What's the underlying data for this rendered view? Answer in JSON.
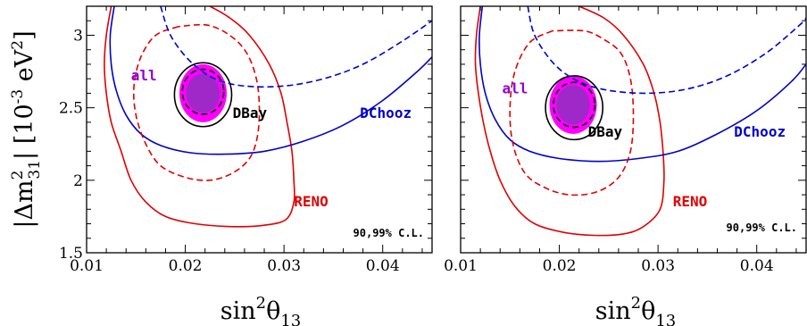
{
  "chart_data": [
    {
      "type": "contour",
      "panel": "left",
      "xlabel_base": "sin",
      "xlabel_sup": "2",
      "xlabel_theta": "θ",
      "xlabel_sub": "13",
      "ylabel_parts": [
        "|Δm",
        "2",
        "31",
        "| [10",
        "-3",
        " eV",
        "2",
        "]"
      ],
      "xlim": [
        0.01,
        0.045
      ],
      "ylim": [
        1.5,
        3.2
      ],
      "xticks": [
        0.01,
        0.02,
        0.03,
        0.04
      ],
      "xtick_labels": [
        "0.01",
        "0.02",
        "0.03",
        "0.04"
      ],
      "yticks": [
        1.5,
        2,
        2.5,
        3
      ],
      "ytick_labels": [
        "1.5",
        "2",
        "2.5",
        "3"
      ],
      "cl_text": "90,99% C.L.",
      "labels": [
        {
          "text": "all",
          "color": "#9400d3",
          "x": 0.0145,
          "y": 2.69
        },
        {
          "text": "DBay",
          "color": "#000000",
          "x": 0.0248,
          "y": 2.43
        },
        {
          "text": "DChooz",
          "color": "#0000cc",
          "x": 0.0377,
          "y": 2.43
        },
        {
          "text": "RENO",
          "color": "#e00000",
          "x": 0.031,
          "y": 1.82
        }
      ],
      "series": [
        {
          "name": "RENO",
          "cl": "99%",
          "style": "solid",
          "color": "#e00000",
          "points": [
            [
              0.0125,
              3.2
            ],
            [
              0.012,
              3.0
            ],
            [
              0.0118,
              2.8
            ],
            [
              0.012,
              2.6
            ],
            [
              0.0125,
              2.4
            ],
            [
              0.0135,
              2.2
            ],
            [
              0.0145,
              2.0
            ],
            [
              0.016,
              1.85
            ],
            [
              0.018,
              1.75
            ],
            [
              0.021,
              1.7
            ],
            [
              0.025,
              1.68
            ],
            [
              0.028,
              1.69
            ],
            [
              0.0302,
              1.73
            ],
            [
              0.031,
              1.85
            ],
            [
              0.031,
              2.0
            ],
            [
              0.0308,
              2.2
            ],
            [
              0.0303,
              2.4
            ],
            [
              0.0297,
              2.6
            ],
            [
              0.0285,
              2.8
            ],
            [
              0.0265,
              3.0
            ],
            [
              0.0245,
              3.12
            ],
            [
              0.0225,
              3.2
            ]
          ]
        },
        {
          "name": "RENO",
          "cl": "90%",
          "style": "dashed",
          "color": "#e00000",
          "points": [
            [
              0.0193,
              3.06
            ],
            [
              0.017,
              3.0
            ],
            [
              0.0155,
              2.85
            ],
            [
              0.0148,
              2.65
            ],
            [
              0.015,
              2.45
            ],
            [
              0.016,
              2.25
            ],
            [
              0.0175,
              2.1
            ],
            [
              0.02,
              2.02
            ],
            [
              0.0225,
              2.0
            ],
            [
              0.0248,
              2.05
            ],
            [
              0.0265,
              2.15
            ],
            [
              0.0273,
              2.3
            ],
            [
              0.0275,
              2.5
            ],
            [
              0.0272,
              2.7
            ],
            [
              0.0262,
              2.88
            ],
            [
              0.0245,
              3.0
            ],
            [
              0.0222,
              3.07
            ],
            [
              0.0193,
              3.06
            ]
          ]
        },
        {
          "name": "DChooz",
          "cl": "99%",
          "style": "solid",
          "color": "#0000cc",
          "points": [
            [
              0.0128,
              3.2
            ],
            [
              0.0124,
              3.0
            ],
            [
              0.0125,
              2.8
            ],
            [
              0.013,
              2.62
            ],
            [
              0.014,
              2.45
            ],
            [
              0.0155,
              2.32
            ],
            [
              0.0175,
              2.24
            ],
            [
              0.0205,
              2.19
            ],
            [
              0.024,
              2.18
            ],
            [
              0.028,
              2.2
            ],
            [
              0.032,
              2.27
            ],
            [
              0.036,
              2.38
            ],
            [
              0.04,
              2.55
            ],
            [
              0.0435,
              2.75
            ],
            [
              0.045,
              2.85
            ]
          ]
        },
        {
          "name": "DChooz",
          "cl": "90%",
          "style": "dashed",
          "color": "#0000cc",
          "points": [
            [
              0.0175,
              3.2
            ],
            [
              0.0185,
              3.0
            ],
            [
              0.0205,
              2.82
            ],
            [
              0.023,
              2.7
            ],
            [
              0.026,
              2.65
            ],
            [
              0.03,
              2.65
            ],
            [
              0.034,
              2.7
            ],
            [
              0.038,
              2.8
            ],
            [
              0.042,
              2.96
            ],
            [
              0.045,
              3.1
            ]
          ]
        },
        {
          "name": "DBay",
          "cl": "99%",
          "style": "solid",
          "color": "#000000",
          "ellipse": {
            "cx": 0.0218,
            "cy": 2.59,
            "rx": 0.0029,
            "ry": 0.22
          }
        },
        {
          "name": "DBay",
          "cl": "90%",
          "style": "dashed",
          "color": "#000000",
          "ellipse": {
            "cx": 0.0218,
            "cy": 2.61,
            "rx": 0.0021,
            "ry": 0.155
          }
        },
        {
          "name": "all",
          "cl": "99%",
          "style": "fill",
          "color": "#ff00ff",
          "ellipse": {
            "cx": 0.0218,
            "cy": 2.6,
            "rx": 0.0024,
            "ry": 0.2
          }
        },
        {
          "name": "all",
          "cl": "90%",
          "style": "fill",
          "color": "#9f28c8",
          "ellipse": {
            "cx": 0.0218,
            "cy": 2.6,
            "rx": 0.0017,
            "ry": 0.135
          }
        }
      ]
    },
    {
      "type": "contour",
      "panel": "right",
      "xlabel_base": "sin",
      "xlabel_sup": "2",
      "xlabel_theta": "θ",
      "xlabel_sub": "13",
      "xlim": [
        0.01,
        0.045
      ],
      "ylim": [
        1.5,
        3.2
      ],
      "xticks": [
        0.01,
        0.02,
        0.03,
        0.04
      ],
      "xtick_labels": [
        "0.01",
        "0.02",
        "0.03",
        "0.04"
      ],
      "yticks": [
        1.5,
        2,
        2.5,
        3
      ],
      "cl_text": "90,99% C.L.",
      "labels": [
        {
          "text": "all",
          "color": "#9400d3",
          "x": 0.0142,
          "y": 2.6
        },
        {
          "text": "DBay",
          "color": "#000000",
          "x": 0.0229,
          "y": 2.3
        },
        {
          "text": "DChooz",
          "color": "#0000cc",
          "x": 0.0377,
          "y": 2.3
        },
        {
          "text": "RENO",
          "color": "#e00000",
          "x": 0.0315,
          "y": 1.82
        }
      ],
      "series": [
        {
          "name": "RENO",
          "cl": "99%",
          "style": "solid",
          "color": "#e00000",
          "points": [
            [
              0.012,
              3.2
            ],
            [
              0.0116,
              3.0
            ],
            [
              0.0115,
              2.8
            ],
            [
              0.0118,
              2.6
            ],
            [
              0.0123,
              2.4
            ],
            [
              0.013,
              2.2
            ],
            [
              0.014,
              2.0
            ],
            [
              0.0155,
              1.82
            ],
            [
              0.0175,
              1.7
            ],
            [
              0.0205,
              1.64
            ],
            [
              0.0235,
              1.62
            ],
            [
              0.0265,
              1.63
            ],
            [
              0.0285,
              1.68
            ],
            [
              0.0302,
              1.8
            ],
            [
              0.0306,
              2.0
            ],
            [
              0.0305,
              2.2
            ],
            [
              0.0302,
              2.4
            ],
            [
              0.0296,
              2.6
            ],
            [
              0.0285,
              2.8
            ],
            [
              0.0265,
              3.0
            ],
            [
              0.0245,
              3.12
            ],
            [
              0.022,
              3.2
            ]
          ]
        },
        {
          "name": "RENO",
          "cl": "90%",
          "style": "dashed",
          "color": "#e00000",
          "points": [
            [
              0.0193,
              3.03
            ],
            [
              0.017,
              2.95
            ],
            [
              0.0155,
              2.75
            ],
            [
              0.015,
              2.5
            ],
            [
              0.0153,
              2.25
            ],
            [
              0.0165,
              2.05
            ],
            [
              0.0185,
              1.95
            ],
            [
              0.021,
              1.9
            ],
            [
              0.0238,
              1.92
            ],
            [
              0.026,
              2.02
            ],
            [
              0.0272,
              2.2
            ],
            [
              0.0275,
              2.45
            ],
            [
              0.0272,
              2.7
            ],
            [
              0.0262,
              2.88
            ],
            [
              0.0243,
              2.98
            ],
            [
              0.0225,
              3.03
            ],
            [
              0.0193,
              3.03
            ]
          ]
        },
        {
          "name": "DChooz",
          "cl": "99%",
          "style": "solid",
          "color": "#0000cc",
          "points": [
            [
              0.0122,
              3.2
            ],
            [
              0.0119,
              3.0
            ],
            [
              0.012,
              2.8
            ],
            [
              0.0125,
              2.6
            ],
            [
              0.0135,
              2.42
            ],
            [
              0.015,
              2.28
            ],
            [
              0.017,
              2.2
            ],
            [
              0.02,
              2.15
            ],
            [
              0.024,
              2.13
            ],
            [
              0.028,
              2.15
            ],
            [
              0.032,
              2.2
            ],
            [
              0.036,
              2.32
            ],
            [
              0.04,
              2.48
            ],
            [
              0.0435,
              2.68
            ],
            [
              0.045,
              2.8
            ]
          ]
        },
        {
          "name": "DChooz",
          "cl": "90%",
          "style": "dashed",
          "color": "#0000cc",
          "points": [
            [
              0.0168,
              3.2
            ],
            [
              0.0175,
              3.0
            ],
            [
              0.0195,
              2.8
            ],
            [
              0.022,
              2.68
            ],
            [
              0.025,
              2.62
            ],
            [
              0.029,
              2.6
            ],
            [
              0.033,
              2.63
            ],
            [
              0.037,
              2.72
            ],
            [
              0.041,
              2.88
            ],
            [
              0.0445,
              3.08
            ],
            [
              0.045,
              3.12
            ]
          ]
        },
        {
          "name": "DBay",
          "cl": "99%",
          "style": "solid",
          "color": "#000000",
          "ellipse": {
            "cx": 0.0215,
            "cy": 2.5,
            "rx": 0.0029,
            "ry": 0.22
          }
        },
        {
          "name": "DBay",
          "cl": "90%",
          "style": "dashed",
          "color": "#000000",
          "ellipse": {
            "cx": 0.0215,
            "cy": 2.52,
            "rx": 0.0021,
            "ry": 0.155
          }
        },
        {
          "name": "all",
          "cl": "99%",
          "style": "fill",
          "color": "#ff00ff",
          "ellipse": {
            "cx": 0.0214,
            "cy": 2.52,
            "rx": 0.0024,
            "ry": 0.2
          }
        },
        {
          "name": "all",
          "cl": "90%",
          "style": "fill",
          "color": "#9f28c8",
          "ellipse": {
            "cx": 0.0214,
            "cy": 2.52,
            "rx": 0.0017,
            "ry": 0.135
          }
        }
      ]
    }
  ]
}
